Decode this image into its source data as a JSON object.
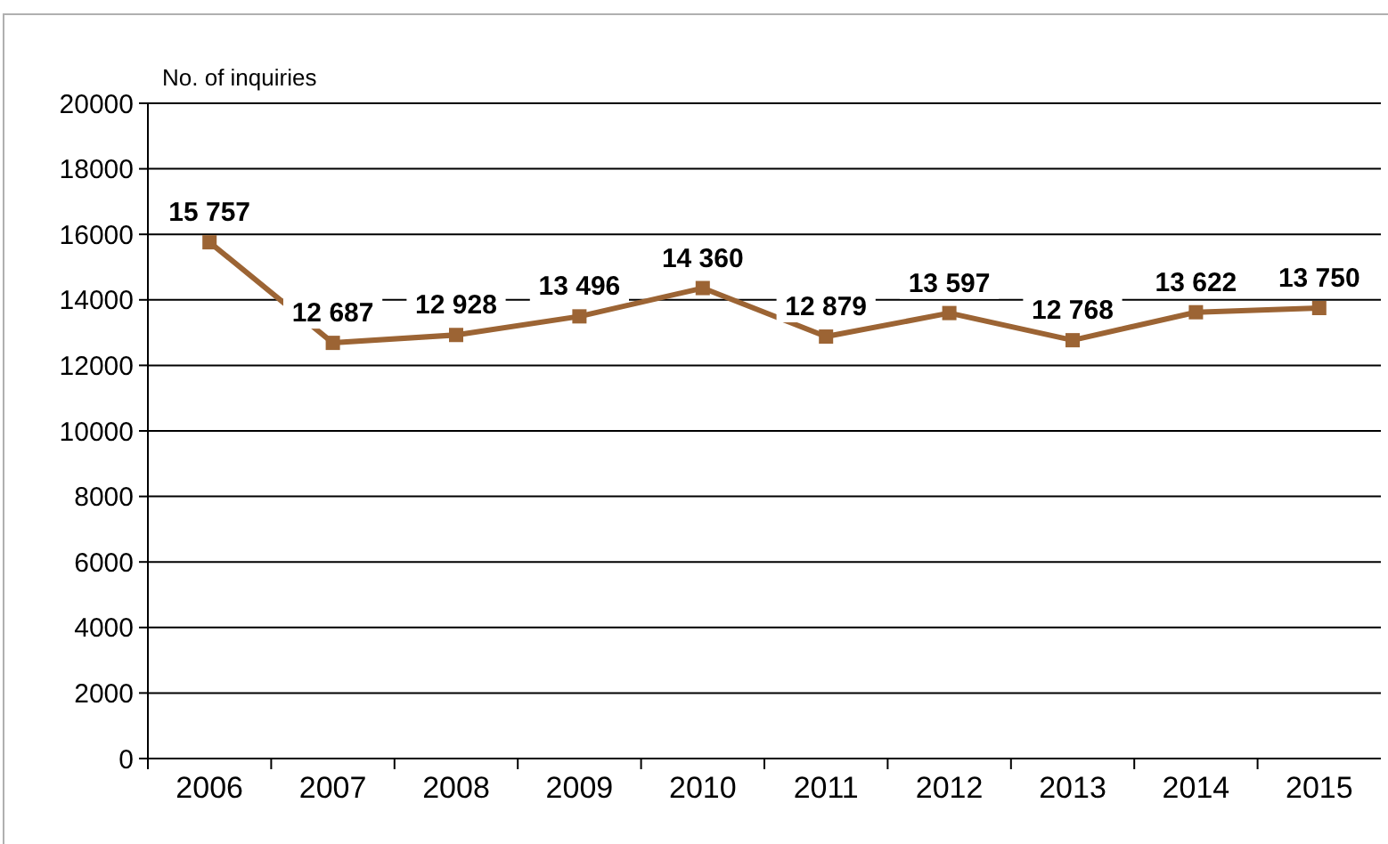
{
  "chart_data": {
    "type": "line",
    "ylabel": "No. of inquiries",
    "categories": [
      "2006",
      "2007",
      "2008",
      "2009",
      "2010",
      "2011",
      "2012",
      "2013",
      "2014",
      "2015"
    ],
    "series": [
      {
        "color": "#9c6434",
        "values": [
          15757,
          12687,
          12928,
          13496,
          14360,
          12879,
          13597,
          12768,
          13622,
          13750
        ],
        "value_labels": [
          "15 757",
          "12 687",
          "12 928",
          "13 496",
          "14 360",
          "12 879",
          "13 597",
          "12 768",
          "13 622",
          "13 750"
        ]
      }
    ],
    "ylim": [
      0,
      20000
    ],
    "yticks": [
      0,
      2000,
      4000,
      6000,
      8000,
      10000,
      12000,
      14000,
      16000,
      18000,
      20000
    ],
    "grid": "y",
    "marker": "square",
    "line_style": "solid"
  }
}
